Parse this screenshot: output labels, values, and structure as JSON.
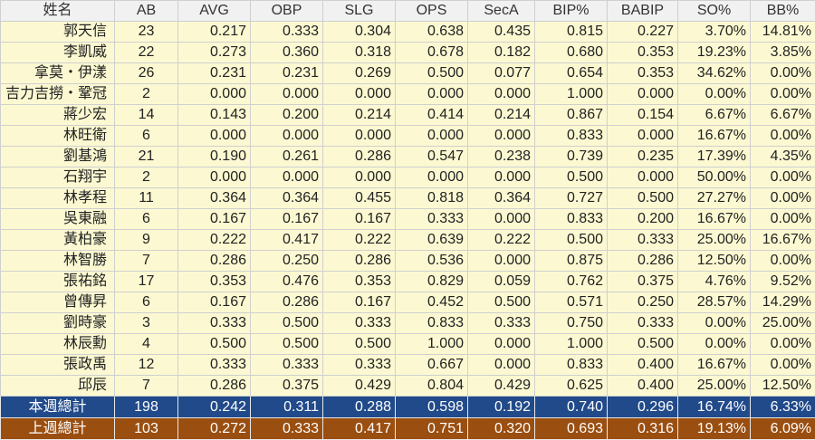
{
  "table": {
    "columns": [
      "姓名",
      "AB",
      "AVG",
      "OBP",
      "SLG",
      "OPS",
      "SecA",
      "BIP%",
      "BABIP",
      "SO%",
      "BB%"
    ],
    "rows": [
      [
        "郭天信",
        "23",
        "0.217",
        "0.333",
        "0.304",
        "0.638",
        "0.435",
        "0.815",
        "0.227",
        "3.70%",
        "14.81%"
      ],
      [
        "李凱威",
        "22",
        "0.273",
        "0.360",
        "0.318",
        "0.678",
        "0.182",
        "0.680",
        "0.353",
        "19.23%",
        "3.85%"
      ],
      [
        "拿莫・伊漾",
        "26",
        "0.231",
        "0.231",
        "0.269",
        "0.500",
        "0.077",
        "0.654",
        "0.353",
        "34.62%",
        "0.00%"
      ],
      [
        "吉力吉撈・鞏冠",
        "2",
        "0.000",
        "0.000",
        "0.000",
        "0.000",
        "0.000",
        "1.000",
        "0.000",
        "0.00%",
        "0.00%"
      ],
      [
        "蔣少宏",
        "14",
        "0.143",
        "0.200",
        "0.214",
        "0.414",
        "0.214",
        "0.867",
        "0.154",
        "6.67%",
        "6.67%"
      ],
      [
        "林旺衛",
        "6",
        "0.000",
        "0.000",
        "0.000",
        "0.000",
        "0.000",
        "0.833",
        "0.000",
        "16.67%",
        "0.00%"
      ],
      [
        "劉基鴻",
        "21",
        "0.190",
        "0.261",
        "0.286",
        "0.547",
        "0.238",
        "0.739",
        "0.235",
        "17.39%",
        "4.35%"
      ],
      [
        "石翔宇",
        "2",
        "0.000",
        "0.000",
        "0.000",
        "0.000",
        "0.000",
        "0.500",
        "0.000",
        "50.00%",
        "0.00%"
      ],
      [
        "林孝程",
        "11",
        "0.364",
        "0.364",
        "0.455",
        "0.818",
        "0.364",
        "0.727",
        "0.500",
        "27.27%",
        "0.00%"
      ],
      [
        "吳東融",
        "6",
        "0.167",
        "0.167",
        "0.167",
        "0.333",
        "0.000",
        "0.833",
        "0.200",
        "16.67%",
        "0.00%"
      ],
      [
        "黃柏豪",
        "9",
        "0.222",
        "0.417",
        "0.222",
        "0.639",
        "0.222",
        "0.500",
        "0.333",
        "25.00%",
        "16.67%"
      ],
      [
        "林智勝",
        "7",
        "0.286",
        "0.250",
        "0.286",
        "0.536",
        "0.000",
        "0.875",
        "0.286",
        "12.50%",
        "0.00%"
      ],
      [
        "張祐銘",
        "17",
        "0.353",
        "0.476",
        "0.353",
        "0.829",
        "0.059",
        "0.762",
        "0.375",
        "4.76%",
        "9.52%"
      ],
      [
        "曾傳昇",
        "6",
        "0.167",
        "0.286",
        "0.167",
        "0.452",
        "0.500",
        "0.571",
        "0.250",
        "28.57%",
        "14.29%"
      ],
      [
        "劉時豪",
        "3",
        "0.333",
        "0.500",
        "0.333",
        "0.833",
        "0.333",
        "0.750",
        "0.333",
        "0.00%",
        "25.00%"
      ],
      [
        "林辰勳",
        "4",
        "0.500",
        "0.500",
        "0.500",
        "1.000",
        "0.000",
        "1.000",
        "0.500",
        "0.00%",
        "0.00%"
      ],
      [
        "張政禹",
        "12",
        "0.333",
        "0.333",
        "0.333",
        "0.667",
        "0.000",
        "0.833",
        "0.400",
        "16.67%",
        "0.00%"
      ],
      [
        "邱辰",
        "7",
        "0.286",
        "0.375",
        "0.429",
        "0.804",
        "0.429",
        "0.625",
        "0.400",
        "25.00%",
        "12.50%"
      ]
    ],
    "totals": [
      [
        "本週總計",
        "198",
        "0.242",
        "0.311",
        "0.288",
        "0.598",
        "0.192",
        "0.740",
        "0.296",
        "16.74%",
        "6.33%"
      ],
      [
        "上週總計",
        "103",
        "0.272",
        "0.333",
        "0.417",
        "0.751",
        "0.320",
        "0.693",
        "0.316",
        "19.13%",
        "6.09%"
      ]
    ]
  },
  "colors": {
    "row_background": "#fcf9d2",
    "header_background": "#f1f1f1",
    "this_week_background": "#214a8a",
    "last_week_background": "#9a4e10"
  }
}
